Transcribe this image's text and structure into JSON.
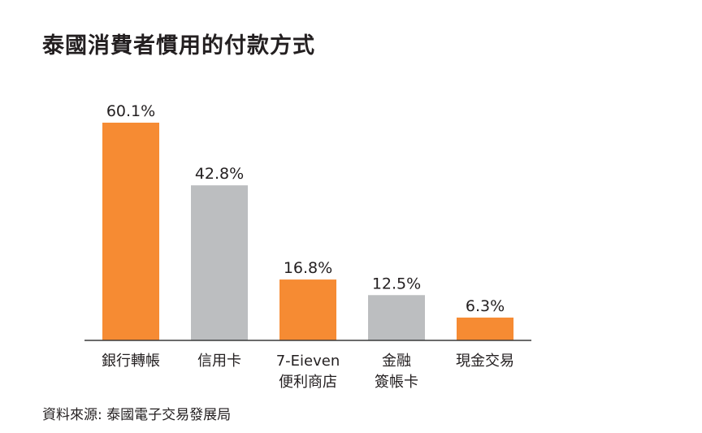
{
  "chart_data": {
    "type": "bar",
    "title": "泰國消費者慣用的付款方式",
    "categories": [
      [
        "銀行轉帳"
      ],
      [
        "信用卡"
      ],
      [
        "7-Eieven",
        "便利商店"
      ],
      [
        "金融",
        "簽帳卡"
      ],
      [
        "現金交易"
      ]
    ],
    "values": [
      60.1,
      42.8,
      16.8,
      12.5,
      6.3
    ],
    "value_labels": [
      "60.1%",
      "42.8%",
      "16.8%",
      "12.5%",
      "6.3%"
    ],
    "bar_colors": [
      "#f68b33",
      "#bcbec0",
      "#f68b33",
      "#bcbec0",
      "#f68b33"
    ],
    "ylim": [
      0,
      65
    ],
    "grid": false,
    "legend": "none",
    "source": "資料來源: 泰國電子交易發展局"
  }
}
